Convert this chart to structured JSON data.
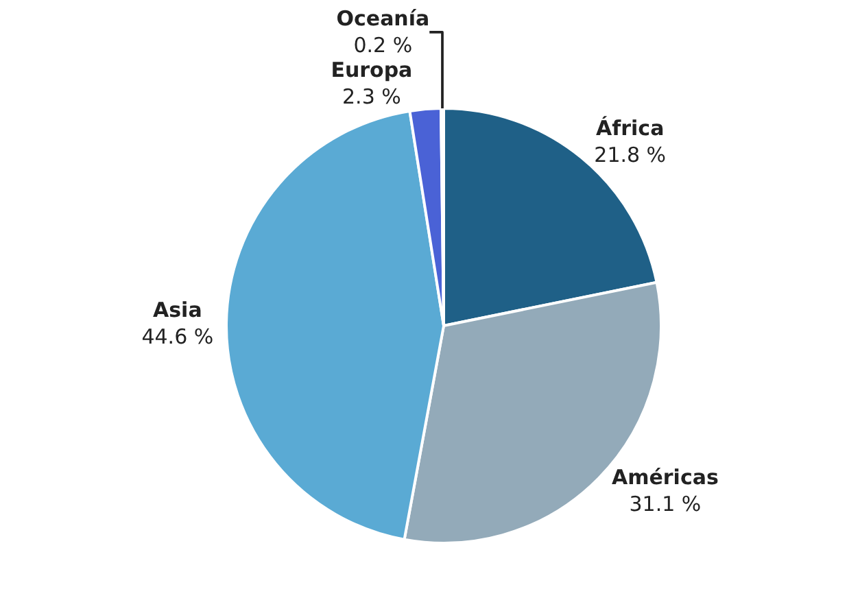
{
  "chart_data": {
    "type": "pie",
    "categories": [
      "África",
      "Américas",
      "Asia",
      "Europa",
      "Oceanía"
    ],
    "values": [
      21.8,
      31.1,
      44.6,
      2.3,
      0.2
    ],
    "value_labels": [
      "21.8 %",
      "31.1 %",
      "44.6 %",
      "2.3 %",
      "0.2 %"
    ],
    "colors": [
      "#1f6087",
      "#93aab9",
      "#5aaad4",
      "#4a62d6",
      "#2c4f8a"
    ],
    "legend": false
  }
}
